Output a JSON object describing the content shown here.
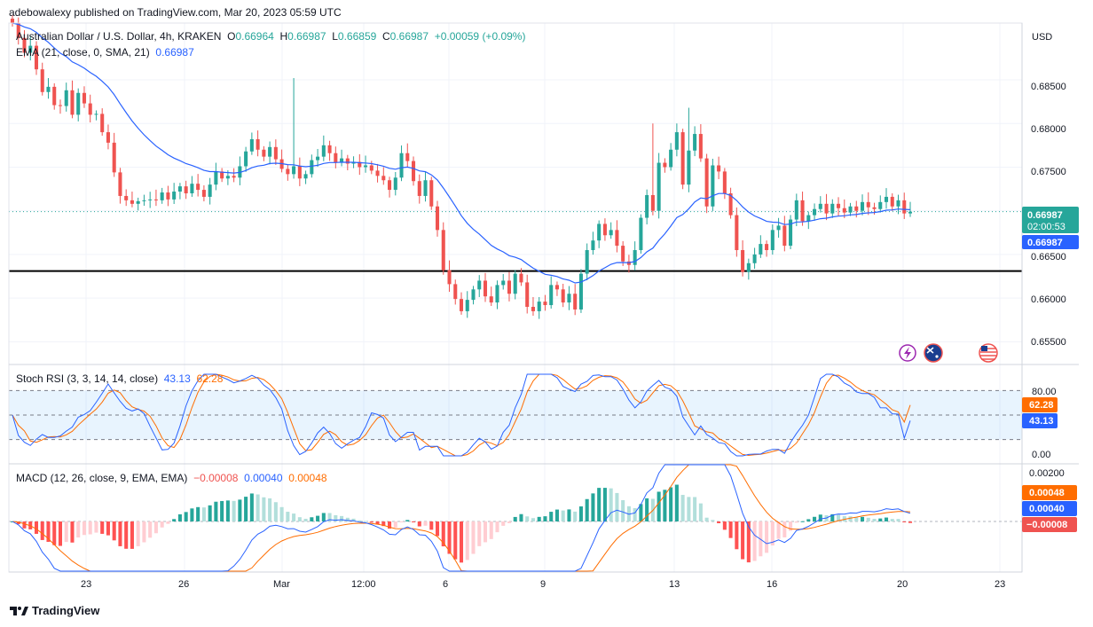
{
  "header": {
    "publisher": "adebowalexy published on TradingView.com, Mar 20, 2023 05:59 UTC",
    "symbol": "Australian Dollar / U.S. Dollar, 4h, KRAKEN",
    "o_label": "O",
    "o_value": "0.66964",
    "h_label": "H",
    "h_value": "0.66987",
    "l_label": "L",
    "l_value": "0.66859",
    "c_label": "C",
    "c_value": "0.66987",
    "change": "+0.00059 (+0.09%)",
    "ema_label": "EMA (21, close, 0, SMA, 21)",
    "ema_value": "0.66987"
  },
  "price_axis": {
    "currency": "USD",
    "ticks": [
      "0.68500",
      "0.68000",
      "0.67500",
      "0.66500",
      "0.66000",
      "0.65500"
    ],
    "last_price": "0.66987",
    "countdown": "02:00:53",
    "ema_price": "0.66987"
  },
  "stoch": {
    "label": "Stoch RSI (3, 3, 14, 14, close)",
    "k_value": "43.13",
    "d_value": "62.28",
    "ticks": [
      "80.00",
      "0.00"
    ]
  },
  "macd": {
    "label": "MACD (12, 26, close, 9, EMA, EMA)",
    "hist_value": "−0.00008",
    "macd_value": "0.00040",
    "signal_value": "0.00048",
    "top_tick": "0.00200"
  },
  "time_axis": [
    "23",
    "26",
    "Mar",
    "12:00",
    "6",
    "9",
    "13",
    "16",
    "20",
    "23"
  ],
  "footer": {
    "brand": "TradingView"
  },
  "colors": {
    "up": "#26a69a",
    "down": "#ef5350",
    "ema": "#2962ff",
    "signal": "#ff6d00",
    "support": "#000000"
  },
  "chart_data": {
    "type": "candlestick",
    "title": "Australian Dollar / U.S. Dollar, 4h, KRAKEN",
    "support_level": 0.6631,
    "ylim": [
      0.6525,
      0.6915
    ],
    "closes": [
      0.6915,
      0.6898,
      0.6881,
      0.6889,
      0.6862,
      0.6836,
      0.6842,
      0.6821,
      0.682,
      0.6838,
      0.681,
      0.6835,
      0.6823,
      0.681,
      0.6811,
      0.679,
      0.6778,
      0.6744,
      0.6717,
      0.6712,
      0.6708,
      0.6711,
      0.6712,
      0.6713,
      0.6712,
      0.6721,
      0.6713,
      0.6722,
      0.6728,
      0.672,
      0.6731,
      0.6724,
      0.6716,
      0.673,
      0.6745,
      0.6737,
      0.674,
      0.6738,
      0.6751,
      0.6768,
      0.6782,
      0.677,
      0.6762,
      0.6773,
      0.6759,
      0.6748,
      0.6742,
      0.6751,
      0.6737,
      0.6742,
      0.6758,
      0.6762,
      0.6775,
      0.6766,
      0.6755,
      0.676,
      0.6754,
      0.6756,
      0.675,
      0.6752,
      0.6746,
      0.674,
      0.6735,
      0.6724,
      0.6738,
      0.6766,
      0.6757,
      0.6734,
      0.6717,
      0.6735,
      0.6705,
      0.6678,
      0.6632,
      0.6616,
      0.6599,
      0.6585,
      0.6598,
      0.661,
      0.662,
      0.6602,
      0.6595,
      0.6615,
      0.662,
      0.6605,
      0.6628,
      0.6618,
      0.659,
      0.6585,
      0.6596,
      0.6592,
      0.6615,
      0.661,
      0.6595,
      0.6605,
      0.6587,
      0.6628,
      0.6655,
      0.6666,
      0.6685,
      0.6672,
      0.6678,
      0.666,
      0.6642,
      0.6638,
      0.6655,
      0.6692,
      0.6718,
      0.67,
      0.6755,
      0.675,
      0.677,
      0.679,
      0.673,
      0.6769,
      0.6788,
      0.676,
      0.6705,
      0.6752,
      0.6745,
      0.672,
      0.6695,
      0.6655,
      0.663,
      0.664,
      0.665,
      0.6662,
      0.6655,
      0.6678,
      0.6683,
      0.666,
      0.669,
      0.6712,
      0.6688,
      0.6695,
      0.6702,
      0.6708,
      0.6697,
      0.6708,
      0.6703,
      0.6698,
      0.6705,
      0.67,
      0.671,
      0.6704,
      0.6702,
      0.671,
      0.6716,
      0.6705,
      0.6712,
      0.6697,
      0.6699
    ],
    "stoch_rsi": {
      "k_last": 43.13,
      "d_last": 62.28,
      "upper": 80,
      "lower": 20
    },
    "macd": {
      "histogram_last": -8e-05,
      "macd_last": 0.0004,
      "signal_last": 0.00048
    }
  }
}
